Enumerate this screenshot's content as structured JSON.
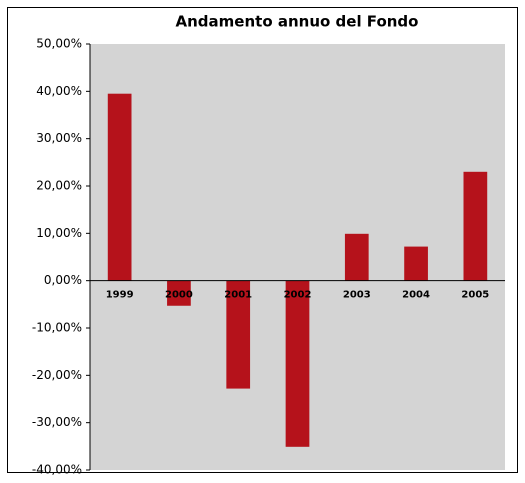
{
  "chart_data": {
    "type": "bar",
    "title": "Andamento annuo del Fondo",
    "categories": [
      "1999",
      "2000",
      "2001",
      "2002",
      "2003",
      "2004",
      "2005"
    ],
    "values": [
      39.5,
      -5.3,
      -22.8,
      -35.1,
      9.9,
      7.2,
      23.0
    ],
    "color": "#b5121b",
    "ylim": [
      -40,
      50
    ],
    "yticks": [
      {
        "value": -40,
        "label": "-40,00%"
      },
      {
        "value": -30,
        "label": "-30,00%"
      },
      {
        "value": -20,
        "label": "-20,00%"
      },
      {
        "value": -10,
        "label": "-10,00%"
      },
      {
        "value": 0,
        "label": "0,00%"
      },
      {
        "value": 10,
        "label": "10,00%"
      },
      {
        "value": 20,
        "label": "20,00%"
      },
      {
        "value": 30,
        "label": "30,00%"
      },
      {
        "value": 40,
        "label": "40,00%"
      },
      {
        "value": 50,
        "label": "50,00%"
      }
    ],
    "grid": false
  }
}
